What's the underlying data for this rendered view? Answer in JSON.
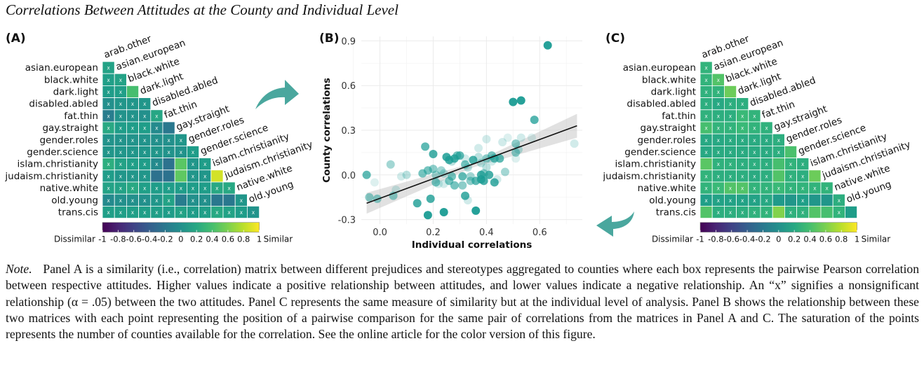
{
  "title": "Correlations Between Attitudes at the County and Individual Level",
  "panels": {
    "a": "(A)",
    "b": "(B)",
    "c": "(C)"
  },
  "note": {
    "label": "Note.",
    "text": "Panel A is a similarity (i.e., correlation) matrix between different prejudices and stereotypes aggregated to counties where each box represents the pairwise Pearson correlation between respective attitudes. Higher values indicate a positive relationship between attitudes, and lower values indicate a negative relationship. An “x” signifies a nonsignificant relationship (α = .05) between the two attitudes. Panel C represents the same measure of similarity but at the individual level of analysis. Panel B shows the relationship between these two matrices with each point representing the position of a pairwise comparison for the same pair of correlations from the matrices in Panel A and C. The saturation of the points represents the number of counties available for the correlation. See the online article for the color version of this figure."
  },
  "icons": {
    "arrow_a_to_b": "curved-arrow-right-icon",
    "arrow_c_to_b": "curved-arrow-left-icon"
  },
  "chart_data": [
    {
      "type": "heatmap",
      "panel": "A",
      "title": "County-level correlation matrix",
      "row_labels": [
        "asian.european",
        "black.white",
        "dark.light",
        "disabled.abled",
        "fat.thin",
        "gay.straight",
        "gender.roles",
        "gender.science",
        "islam.christianity",
        "judaism.christianity",
        "native.white",
        "old.young",
        "trans.cis"
      ],
      "col_labels": [
        "arab.other",
        "asian.european",
        "black.white",
        "dark.light",
        "disabled.abled",
        "fat.thin",
        "gay.straight",
        "gender.roles",
        "gender.science",
        "islam.christianity",
        "judaism.christianity",
        "native.white",
        "old.young"
      ],
      "values": [
        [
          0.15
        ],
        [
          0.12,
          0.15
        ],
        [
          0.1,
          0.12,
          0.4
        ],
        [
          0.0,
          0.05,
          0.05,
          0.05
        ],
        [
          -0.15,
          0.02,
          0.02,
          0.0,
          0.18
        ],
        [
          0.2,
          0.1,
          0.1,
          0.1,
          -0.05,
          -0.2
        ],
        [
          0.02,
          0.02,
          0.02,
          0.02,
          0.0,
          0.0,
          0.05
        ],
        [
          0.05,
          0.05,
          0.05,
          0.05,
          0.05,
          0.02,
          0.02,
          0.1
        ],
        [
          0.25,
          0.15,
          0.12,
          0.1,
          -0.05,
          -0.25,
          0.48,
          0.05,
          0.1
        ],
        [
          0.1,
          0.05,
          0.05,
          0.05,
          -0.25,
          -0.25,
          0.5,
          0.05,
          0.05,
          0.87
        ],
        [
          0.15,
          0.15,
          0.2,
          0.12,
          0.1,
          0.1,
          0.1,
          0.1,
          0.1,
          0.2,
          0.2
        ],
        [
          -0.05,
          0.0,
          0.0,
          0.0,
          0.05,
          0.15,
          -0.15,
          0.0,
          0.0,
          -0.2,
          -0.2,
          0.05
        ],
        [
          0.12,
          0.12,
          0.12,
          0.12,
          0.12,
          0.1,
          0.15,
          0.1,
          0.12,
          0.2,
          0.15,
          0.1,
          0.02
        ]
      ],
      "nonsignificant": [
        [
          1
        ],
        [
          1,
          1
        ],
        [
          1,
          1,
          0
        ],
        [
          1,
          1,
          1,
          1
        ],
        [
          1,
          1,
          1,
          1,
          1
        ],
        [
          1,
          1,
          1,
          1,
          1,
          0
        ],
        [
          1,
          1,
          1,
          1,
          1,
          1,
          1
        ],
        [
          1,
          1,
          1,
          1,
          1,
          1,
          1,
          1
        ],
        [
          1,
          1,
          1,
          1,
          1,
          0,
          0,
          1,
          1
        ],
        [
          1,
          1,
          1,
          1,
          0,
          0,
          0,
          1,
          1,
          0
        ],
        [
          1,
          1,
          1,
          1,
          1,
          1,
          1,
          1,
          1,
          1,
          1
        ],
        [
          1,
          1,
          1,
          1,
          1,
          1,
          0,
          1,
          1,
          0,
          0,
          1
        ],
        [
          1,
          1,
          1,
          1,
          1,
          1,
          1,
          1,
          1,
          1,
          1,
          1,
          1
        ]
      ],
      "colorbar": {
        "min": -1,
        "max": 1,
        "ticks": [
          "-1",
          "-0.8",
          "-0.6",
          "-0.4",
          "-0.2",
          "0",
          "0.2",
          "0.4",
          "0.6",
          "0.8",
          "1"
        ],
        "left_label": "Dissimilar",
        "right_label": "Similar",
        "colormap": "viridis"
      }
    },
    {
      "type": "scatter",
      "panel": "B",
      "xlabel": "Individual correlations",
      "ylabel": "County correlations",
      "xlim": [
        -0.07,
        0.76
      ],
      "ylim": [
        -0.33,
        0.93
      ],
      "xticks": [
        "0.0",
        "0.2",
        "0.4",
        "0.6"
      ],
      "xtick_values": [
        0.0,
        0.2,
        0.4,
        0.6
      ],
      "yticks": [
        "-0.3",
        "0.0",
        "0.3",
        "0.6",
        "0.9"
      ],
      "ytick_values": [
        -0.3,
        0.0,
        0.3,
        0.6,
        0.9
      ],
      "grid": true,
      "point_color": "#1a9c94",
      "points": [
        {
          "x": 0.63,
          "y": 0.87,
          "a": 0.95
        },
        {
          "x": 0.5,
          "y": 0.49,
          "a": 0.95
        },
        {
          "x": 0.53,
          "y": 0.5,
          "a": 0.95
        },
        {
          "x": 0.58,
          "y": 0.37,
          "a": 0.75
        },
        {
          "x": -0.05,
          "y": 0.0,
          "a": 0.7
        },
        {
          "x": -0.02,
          "y": -0.05,
          "a": 0.15
        },
        {
          "x": -0.04,
          "y": -0.15,
          "a": 0.5
        },
        {
          "x": -0.01,
          "y": -0.16,
          "a": 0.5
        },
        {
          "x": 0.04,
          "y": 0.07,
          "a": 0.4
        },
        {
          "x": 0.05,
          "y": -0.14,
          "a": 0.5
        },
        {
          "x": 0.06,
          "y": -0.1,
          "a": 0.2
        },
        {
          "x": 0.08,
          "y": -0.01,
          "a": 0.2
        },
        {
          "x": 0.1,
          "y": 0.0,
          "a": 0.3
        },
        {
          "x": 0.14,
          "y": -0.19,
          "a": 0.8
        },
        {
          "x": 0.17,
          "y": 0.19,
          "a": 0.7
        },
        {
          "x": 0.16,
          "y": 0.01,
          "a": 0.6
        },
        {
          "x": 0.18,
          "y": 0.03,
          "a": 0.6
        },
        {
          "x": 0.18,
          "y": -0.27,
          "a": 0.95
        },
        {
          "x": 0.19,
          "y": -0.16,
          "a": 0.8
        },
        {
          "x": 0.2,
          "y": 0.14,
          "a": 0.8
        },
        {
          "x": 0.2,
          "y": 0.04,
          "a": 0.5
        },
        {
          "x": 0.21,
          "y": -0.05,
          "a": 0.6
        },
        {
          "x": 0.21,
          "y": 0.0,
          "a": 0.4
        },
        {
          "x": 0.22,
          "y": -0.06,
          "a": 0.2
        },
        {
          "x": 0.23,
          "y": 0.03,
          "a": 0.4
        },
        {
          "x": 0.24,
          "y": -0.06,
          "a": 0.2
        },
        {
          "x": 0.24,
          "y": -0.25,
          "a": 0.95
        },
        {
          "x": 0.24,
          "y": 0.01,
          "a": 0.3
        },
        {
          "x": 0.25,
          "y": 0.12,
          "a": 0.85
        },
        {
          "x": 0.26,
          "y": 0.1,
          "a": 0.8
        },
        {
          "x": 0.26,
          "y": -0.04,
          "a": 0.6
        },
        {
          "x": 0.27,
          "y": 0.09,
          "a": 0.3
        },
        {
          "x": 0.27,
          "y": -0.01,
          "a": 0.6
        },
        {
          "x": 0.28,
          "y": 0.11,
          "a": 0.8
        },
        {
          "x": 0.28,
          "y": -0.07,
          "a": 0.6
        },
        {
          "x": 0.29,
          "y": 0.13,
          "a": 0.6
        },
        {
          "x": 0.3,
          "y": 0.13,
          "a": 0.7
        },
        {
          "x": 0.31,
          "y": -0.01,
          "a": 0.7
        },
        {
          "x": 0.31,
          "y": -0.07,
          "a": 0.5
        },
        {
          "x": 0.32,
          "y": 0.07,
          "a": 0.6
        },
        {
          "x": 0.32,
          "y": 0.11,
          "a": 0.2
        },
        {
          "x": 0.32,
          "y": -0.14,
          "a": 0.8
        },
        {
          "x": 0.33,
          "y": -0.17,
          "a": 0.2
        },
        {
          "x": 0.33,
          "y": 0.05,
          "a": 0.3
        },
        {
          "x": 0.34,
          "y": -0.04,
          "a": 0.5
        },
        {
          "x": 0.34,
          "y": -0.01,
          "a": 0.4
        },
        {
          "x": 0.35,
          "y": 0.1,
          "a": 0.8
        },
        {
          "x": 0.36,
          "y": -0.04,
          "a": 0.7
        },
        {
          "x": 0.36,
          "y": -0.24,
          "a": 0.95
        },
        {
          "x": 0.37,
          "y": 0.18,
          "a": 0.2
        },
        {
          "x": 0.37,
          "y": 0.12,
          "a": 0.3
        },
        {
          "x": 0.38,
          "y": 0.08,
          "a": 0.3
        },
        {
          "x": 0.38,
          "y": 0.0,
          "a": 0.8
        },
        {
          "x": 0.38,
          "y": -0.03,
          "a": 0.8
        },
        {
          "x": 0.39,
          "y": -0.04,
          "a": 0.8
        },
        {
          "x": 0.39,
          "y": 0.01,
          "a": 0.5
        },
        {
          "x": 0.4,
          "y": 0.11,
          "a": 0.5
        },
        {
          "x": 0.4,
          "y": 0.05,
          "a": 0.3
        },
        {
          "x": 0.4,
          "y": 0.24,
          "a": 0.2
        },
        {
          "x": 0.41,
          "y": 0.0,
          "a": 0.8
        },
        {
          "x": 0.42,
          "y": 0.13,
          "a": 0.6
        },
        {
          "x": 0.42,
          "y": 0.09,
          "a": 0.2
        },
        {
          "x": 0.43,
          "y": -0.05,
          "a": 0.8
        },
        {
          "x": 0.43,
          "y": 0.11,
          "a": 0.7
        },
        {
          "x": 0.44,
          "y": -0.03,
          "a": 0.2
        },
        {
          "x": 0.45,
          "y": 0.11,
          "a": 0.7
        },
        {
          "x": 0.46,
          "y": 0.22,
          "a": 0.2
        },
        {
          "x": 0.47,
          "y": 0.02,
          "a": 0.4
        },
        {
          "x": 0.48,
          "y": 0.25,
          "a": 0.15
        },
        {
          "x": 0.51,
          "y": 0.11,
          "a": 0.15
        },
        {
          "x": 0.51,
          "y": 0.21,
          "a": 0.5
        },
        {
          "x": 0.51,
          "y": 0.15,
          "a": 0.5
        },
        {
          "x": 0.52,
          "y": 0.17,
          "a": 0.3
        },
        {
          "x": 0.53,
          "y": 0.25,
          "a": 0.2
        },
        {
          "x": 0.57,
          "y": 0.25,
          "a": 0.15
        },
        {
          "x": 0.73,
          "y": 0.21,
          "a": 0.2
        }
      ],
      "fit_line": {
        "x0": -0.05,
        "y0": -0.19,
        "x1": 0.74,
        "y1": 0.33
      },
      "ci_band": {
        "x": [
          -0.05,
          0.35,
          0.74
        ],
        "lower": [
          -0.26,
          0.05,
          0.25
        ],
        "upper": [
          -0.12,
          0.08,
          0.41
        ]
      }
    },
    {
      "type": "heatmap",
      "panel": "C",
      "title": "Individual-level correlation matrix",
      "row_labels": [
        "asian.european",
        "black.white",
        "dark.light",
        "disabled.abled",
        "fat.thin",
        "gay.straight",
        "gender.roles",
        "gender.science",
        "islam.christianity",
        "judaism.christianity",
        "native.white",
        "old.young",
        "trans.cis"
      ],
      "col_labels": [
        "arab.other",
        "asian.european",
        "black.white",
        "dark.light",
        "disabled.abled",
        "fat.thin",
        "gay.straight",
        "gender.roles",
        "gender.science",
        "islam.christianity",
        "judaism.christianity",
        "native.white",
        "old.young"
      ],
      "values": [
        [
          0.3
        ],
        [
          0.3,
          0.45
        ],
        [
          0.28,
          0.3,
          0.55
        ],
        [
          0.25,
          0.2,
          0.25,
          0.25
        ],
        [
          0.28,
          0.25,
          0.25,
          0.35,
          0.3
        ],
        [
          0.4,
          0.3,
          0.3,
          0.35,
          0.3,
          0.28
        ],
        [
          0.2,
          0.2,
          0.22,
          0.22,
          0.22,
          0.22,
          0.25
        ],
        [
          0.2,
          0.22,
          0.22,
          0.22,
          0.22,
          0.22,
          0.25,
          0.42
        ],
        [
          0.48,
          0.28,
          0.28,
          0.25,
          0.25,
          0.25,
          0.4,
          0.3,
          0.25
        ],
        [
          0.3,
          0.25,
          0.25,
          0.25,
          0.22,
          0.25,
          0.45,
          0.28,
          0.25,
          0.55
        ],
        [
          0.3,
          0.35,
          0.45,
          0.45,
          0.3,
          0.3,
          0.35,
          0.3,
          0.3,
          0.3,
          0.3
        ],
        [
          0.12,
          0.15,
          0.15,
          0.15,
          0.15,
          0.2,
          0.08,
          0.05,
          0.12,
          0.05,
          0.05,
          0.25
        ],
        [
          0.45,
          0.25,
          0.25,
          0.25,
          0.28,
          0.3,
          0.62,
          0.28,
          0.28,
          0.45,
          0.4,
          0.3,
          0.1
        ]
      ],
      "nonsignificant": [
        [
          1
        ],
        [
          1,
          1
        ],
        [
          1,
          1,
          0
        ],
        [
          1,
          1,
          1,
          1
        ],
        [
          1,
          1,
          1,
          1,
          1
        ],
        [
          1,
          1,
          1,
          1,
          1,
          1
        ],
        [
          1,
          1,
          1,
          1,
          1,
          1,
          1
        ],
        [
          1,
          1,
          1,
          1,
          1,
          1,
          1,
          0
        ],
        [
          0,
          1,
          1,
          1,
          1,
          1,
          0,
          1,
          1
        ],
        [
          1,
          1,
          1,
          1,
          1,
          1,
          0,
          1,
          1,
          0
        ],
        [
          1,
          1,
          1,
          1,
          1,
          1,
          1,
          1,
          1,
          1,
          1
        ],
        [
          1,
          1,
          1,
          1,
          1,
          1,
          0,
          0,
          1,
          0,
          0,
          1
        ],
        [
          0,
          1,
          1,
          1,
          1,
          1,
          0,
          1,
          1,
          0,
          0,
          1,
          0
        ]
      ],
      "colorbar": {
        "min": -1,
        "max": 1,
        "ticks": [
          "-1",
          "-0.8",
          "-0.6",
          "-0.4",
          "-0.2",
          "0",
          "0.2",
          "0.4",
          "0.6",
          "0.8",
          "1"
        ],
        "left_label": "Dissimilar",
        "right_label": "Similar",
        "colormap": "viridis"
      }
    }
  ]
}
